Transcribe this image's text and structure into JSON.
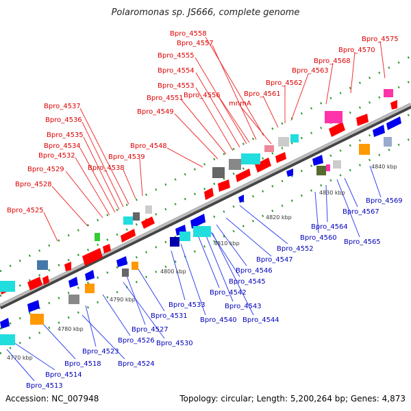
{
  "title": "Polaromonas sp. JS666, complete genome",
  "footer": {
    "accession": "Accession: NC_007948",
    "topology": "Topology: circular; Length: 5,200,264 bp; Genes: 4,873"
  },
  "colors": {
    "top_label": "#dd0000",
    "bottom_label": "#0000bb",
    "backbone": "#888888",
    "forward_gene": "#ff0000",
    "reverse_gene": "#0000ff",
    "tick": "#228822"
  },
  "ticks": [
    {
      "label": "4770 kbp",
      "kbp": 4770
    },
    {
      "label": "4780 kbp",
      "kbp": 4780
    },
    {
      "label": "4790 kbp",
      "kbp": 4790
    },
    {
      "label": "4800 kbp",
      "kbp": 4800
    },
    {
      "label": "4810 kbp",
      "kbp": 4810
    },
    {
      "label": "4820 kbp",
      "kbp": 4820
    },
    {
      "label": "4830 kbp",
      "kbp": 4830
    },
    {
      "label": "4840 kbp",
      "kbp": 4840
    }
  ],
  "top_labels": [
    "Bpro_4558",
    "Bpro_4557",
    "Bpro_4555",
    "Bpro_4554",
    "Bpro_4553",
    "Bpro_4556",
    "Bpro_4551",
    "Bpro_4549",
    "mnmA",
    "Bpro_4561",
    "Bpro_4562",
    "Bpro_4563",
    "Bpro_4568",
    "Bpro_4570",
    "Bpro_4575",
    "Bpro_4537",
    "Bpro_4536",
    "Bpro_4535",
    "Bpro_4534",
    "Bpro_4532",
    "Bpro_4548",
    "Bpro_4539",
    "Bpro_4538",
    "Bpro_4529",
    "Bpro_4528",
    "Bpro_4525"
  ],
  "bottom_labels": [
    "Bpro_4569",
    "Bpro_4567",
    "Bpro_4564",
    "Bpro_4560",
    "Bpro_4565",
    "Bpro_4552",
    "Bpro_4547",
    "Bpro_4546",
    "Bpro_4545",
    "Bpro_4542",
    "Bpro_4543",
    "Bpro_4544",
    "Bpro_4540",
    "Bpro_4533",
    "Bpro_4531",
    "Bpro_4527",
    "Bpro_4526",
    "Bpro_4530",
    "Bpro_4523",
    "Bpro_4524",
    "Bpro_4518",
    "Bpro_4514",
    "Bpro_4513"
  ]
}
